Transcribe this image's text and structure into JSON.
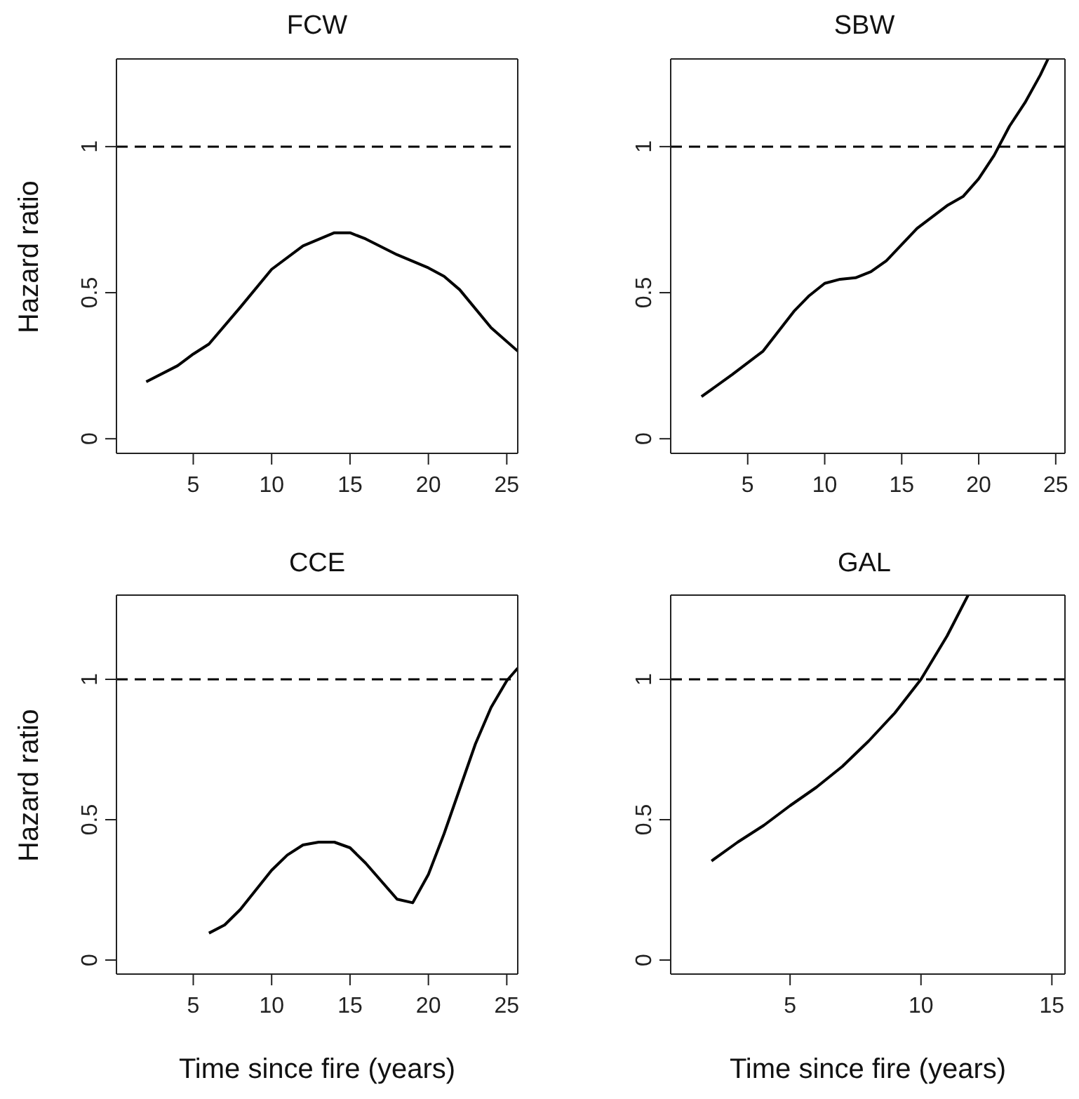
{
  "chart_data": [
    {
      "type": "line",
      "title": "FCW",
      "ylabel": "Hazard ratio",
      "x": [
        2,
        4,
        5,
        6,
        8,
        10,
        12,
        14,
        15,
        16,
        18,
        20,
        21,
        22,
        24,
        25.7
      ],
      "series": [
        {
          "color": "#000000",
          "values": [
            0.195,
            0.25,
            0.29,
            0.324,
            0.45,
            0.58,
            0.66,
            0.705,
            0.705,
            0.684,
            0.63,
            0.585,
            0.556,
            0.51,
            0.38,
            0.3
          ]
        }
      ],
      "xlim": [
        0.1,
        25.7
      ],
      "xticks": [
        5,
        10,
        15,
        20,
        25
      ],
      "ylim": [
        -0.05,
        1.3
      ],
      "yticks": [
        0,
        0.5,
        1
      ],
      "ref_lines": [
        {
          "axis": "y",
          "value": 1,
          "color": "#000000",
          "line_style": "dashed"
        }
      ],
      "grid": false,
      "legend": false,
      "marker": "none",
      "line_style": "solid"
    },
    {
      "type": "line",
      "title": "SBW",
      "x": [
        2,
        4,
        6,
        8,
        9,
        10,
        11,
        12,
        13,
        14,
        16,
        18,
        19,
        20,
        21,
        22,
        23,
        24,
        24.5
      ],
      "series": [
        {
          "color": "#000000",
          "values": [
            0.144,
            0.22,
            0.3,
            0.436,
            0.49,
            0.532,
            0.546,
            0.551,
            0.572,
            0.609,
            0.72,
            0.8,
            0.83,
            0.89,
            0.97,
            1.07,
            1.15,
            1.245,
            1.3
          ]
        }
      ],
      "xlim": [
        0,
        25.6
      ],
      "xticks": [
        5,
        10,
        15,
        20,
        25
      ],
      "ylim": [
        -0.05,
        1.3
      ],
      "yticks": [
        0,
        0.5,
        1
      ],
      "ref_lines": [
        {
          "axis": "y",
          "value": 1,
          "color": "#000000",
          "line_style": "dashed"
        }
      ],
      "grid": false,
      "legend": false,
      "marker": "none",
      "line_style": "solid"
    },
    {
      "type": "line",
      "title": "CCE",
      "xlabel": "Time since fire (years)",
      "ylabel": "Hazard ratio",
      "x": [
        6,
        7,
        8,
        10,
        11,
        12,
        13,
        14,
        15,
        16,
        18,
        19,
        20,
        21,
        22,
        23,
        24,
        25,
        25.7
      ],
      "series": [
        {
          "color": "#000000",
          "values": [
            0.096,
            0.125,
            0.18,
            0.32,
            0.374,
            0.41,
            0.42,
            0.42,
            0.4,
            0.345,
            0.217,
            0.204,
            0.305,
            0.45,
            0.61,
            0.77,
            0.9,
            0.995,
            1.04
          ]
        }
      ],
      "xlim": [
        0.1,
        25.7
      ],
      "xticks": [
        5,
        10,
        15,
        20,
        25
      ],
      "ylim": [
        -0.05,
        1.3
      ],
      "yticks": [
        0,
        0.5,
        1
      ],
      "ref_lines": [
        {
          "axis": "y",
          "value": 1,
          "color": "#000000",
          "line_style": "dashed"
        }
      ],
      "grid": false,
      "legend": false,
      "marker": "none",
      "line_style": "solid"
    },
    {
      "type": "line",
      "title": "GAL",
      "xlabel": "Time since fire (years)",
      "x": [
        2,
        3,
        4,
        5,
        6,
        7,
        8,
        9,
        10,
        11,
        11.8
      ],
      "series": [
        {
          "color": "#000000",
          "values": [
            0.353,
            0.42,
            0.48,
            0.55,
            0.615,
            0.69,
            0.78,
            0.88,
            1.0,
            1.155,
            1.3
          ]
        }
      ],
      "xlim": [
        0.44,
        15.5
      ],
      "xticks": [
        5,
        10,
        15
      ],
      "ylim": [
        -0.05,
        1.3
      ],
      "yticks": [
        0,
        0.5,
        1
      ],
      "ref_lines": [
        {
          "axis": "y",
          "value": 1,
          "color": "#000000",
          "line_style": "dashed"
        }
      ],
      "grid": false,
      "legend": false,
      "marker": "none",
      "line_style": "solid"
    }
  ]
}
